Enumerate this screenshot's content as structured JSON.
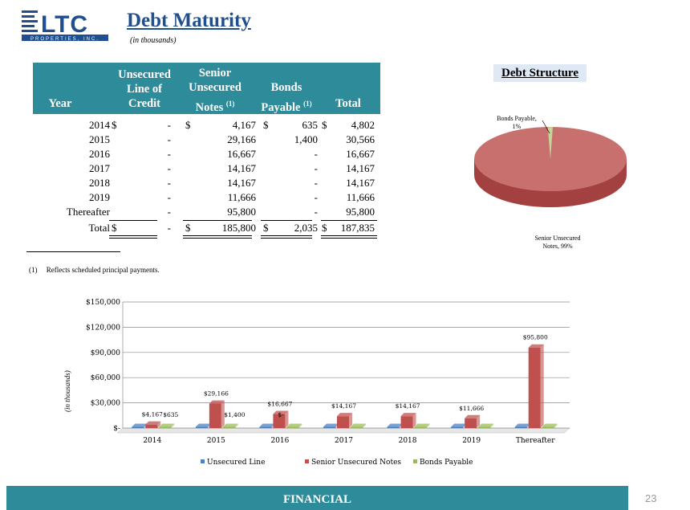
{
  "logo": {
    "letters": "LTC",
    "tagline": "PROPERTIES, INC."
  },
  "title": "Debt Maturity",
  "subtitle": "(in thousands)",
  "table": {
    "headers": {
      "year": "Year",
      "loc_1": "Unsecured",
      "loc_2": "Line of",
      "loc_3": "Credit",
      "sun_1": "Senior",
      "sun_2": "Unsecured",
      "sun_3": "Notes",
      "bp_1": "Bonds",
      "bp_2": "Payable",
      "fn_mark": "(1)",
      "total": "Total"
    },
    "dollar": "$",
    "rows": [
      {
        "year": "2014",
        "loc": "-",
        "sun": "4,167",
        "bp": "635",
        "total": "4,802"
      },
      {
        "year": "2015",
        "loc": "-",
        "sun": "29,166",
        "bp": "1,400",
        "total": "30,566"
      },
      {
        "year": "2016",
        "loc": "-",
        "sun": "16,667",
        "bp": "-",
        "total": "16,667"
      },
      {
        "year": "2017",
        "loc": "-",
        "sun": "14,167",
        "bp": "-",
        "total": "14,167"
      },
      {
        "year": "2018",
        "loc": "-",
        "sun": "14,167",
        "bp": "-",
        "total": "14,167"
      },
      {
        "year": "2019",
        "loc": "-",
        "sun": "11,666",
        "bp": "-",
        "total": "11,666"
      },
      {
        "year": "Thereafter",
        "loc": "-",
        "sun": "95,800",
        "bp": "-",
        "total": "95,800"
      }
    ],
    "total_row": {
      "year": "Total",
      "loc": "-",
      "sun": "185,800",
      "bp": "2,035",
      "total": "187,835"
    }
  },
  "footnote": "(1)     Reflects scheduled principal payments.",
  "chart_data": [
    {
      "type": "pie",
      "title": "Debt Structure",
      "slices": [
        {
          "label": "Senior Unsecured Notes, 99%",
          "value": 99,
          "color": "#c0504d"
        },
        {
          "label": "Bonds Payable, 1%",
          "value": 1,
          "color": "#9bbb59"
        }
      ],
      "label_text": {
        "bonds_1": "Bonds Payable,",
        "bonds_2": "1%",
        "sun_1": "Senior Unsecured",
        "sun_2": "Notes, 99%"
      }
    },
    {
      "type": "bar",
      "categories": [
        "2014",
        "2015",
        "2016",
        "2017",
        "2018",
        "2019",
        "Thereafter"
      ],
      "ylabel": "(in thousands)",
      "ylim": [
        0,
        150000
      ],
      "yticks": [
        0,
        30000,
        60000,
        90000,
        120000,
        150000
      ],
      "ytick_labels": [
        "$-",
        "$30,000",
        "$60,000",
        "$90,000",
        "$120,000",
        "$150,000"
      ],
      "grid": true,
      "legend_position": "bottom",
      "series": [
        {
          "name": "Unsecured Line",
          "color": "#4f81bd",
          "values": [
            0,
            0,
            0,
            0,
            0,
            0,
            0
          ]
        },
        {
          "name": "Senior Unsecured Notes",
          "color": "#c0504d",
          "values": [
            4167,
            29166,
            16667,
            14167,
            14167,
            11666,
            95800
          ]
        },
        {
          "name": "Bonds Payable",
          "color": "#9bbb59",
          "values": [
            635,
            1400,
            0,
            0,
            0,
            0,
            0
          ]
        }
      ],
      "data_labels": [
        {
          "series": 1,
          "index": 0,
          "text": "$4,167"
        },
        {
          "series": 2,
          "index": 0,
          "text": "$635"
        },
        {
          "series": 1,
          "index": 1,
          "text": "$29,166"
        },
        {
          "series": 2,
          "index": 1,
          "text": "$1,400"
        },
        {
          "series": 2,
          "index": 2,
          "text": "$-"
        },
        {
          "series": 1,
          "index": 2,
          "text": "$16,667"
        },
        {
          "series": 1,
          "index": 3,
          "text": "$14,167"
        },
        {
          "series": 1,
          "index": 4,
          "text": "$14,167"
        },
        {
          "series": 1,
          "index": 5,
          "text": "$11,666"
        },
        {
          "series": 1,
          "index": 6,
          "text": "$95,800"
        }
      ]
    }
  ],
  "footer": {
    "label": "FINANCIAL",
    "page": "23"
  }
}
